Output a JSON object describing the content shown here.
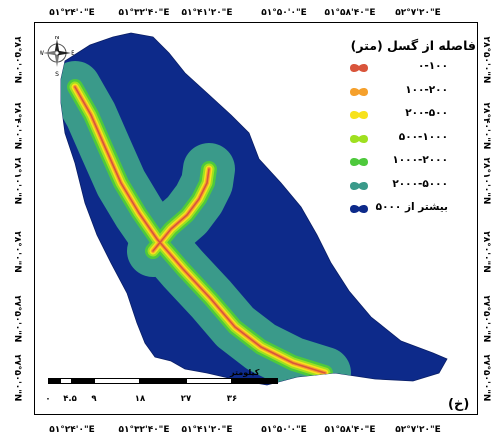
{
  "axes": {
    "top_labels": [
      "۵۱°۲۴'۰\"E",
      "۵۱°۳۲'۴۰\"E",
      "۵۱°۴۱'۲۰\"E",
      "۵۱°۵۰'۰\"E",
      "۵۱°۵۸'۴۰\"E",
      "۵۲°۷'۲۰\"E"
    ],
    "bottom_labels": [
      "۵۱°۲۴'۰\"E",
      "۵۱°۳۲'۴۰\"E",
      "۵۱°۴۱'۲۰\"E",
      "۵۱°۵۰'۰\"E",
      "۵۱°۵۸'۴۰\"E",
      "۵۲°۷'۲۰\"E"
    ],
    "left_labels": [
      "۲۸°۵۰'۰\"N",
      "۲۸°۴۰'۰\"N",
      "۲۸°۱۰'۰\"N",
      "۲۸°۰'۰\"N",
      "۲۷°۵۰'۰\"N",
      "۲۷°۵۰'۰\"N"
    ],
    "right_labels": [
      "۲۸°۵۰'۰\"N",
      "۲۸°۴۰'۰\"N",
      "۲۸°۱۰'۰\"N",
      "۲۸°۰'۰\"N",
      "۲۷°۵۰'۰\"N",
      "۲۷°۵۰'۰\"N"
    ]
  },
  "legend": {
    "title": "فاصله از گسل (متر)",
    "items": [
      {
        "label": "۰-۱۰۰",
        "color": "#d9553b"
      },
      {
        "label": "۱۰۰-۲۰۰",
        "color": "#f5a02c"
      },
      {
        "label": "۲۰۰-۵۰۰",
        "color": "#f7e21c"
      },
      {
        "label": "۵۰۰-۱۰۰۰",
        "color": "#9fe020"
      },
      {
        "label": "۱۰۰۰-۲۰۰۰",
        "color": "#4ec93c"
      },
      {
        "label": "۲۰۰۰-۵۰۰۰",
        "color": "#3a9a8a"
      },
      {
        "label": "بیشتر از ۵۰۰۰",
        "color": "#0d2a8a"
      }
    ]
  },
  "scale": {
    "unit": "کیلومتر",
    "numbers": [
      "۰",
      "۴.۵",
      "۹",
      "۱۸",
      "۲۷",
      "۳۶"
    ]
  },
  "panel_label": "(خ)",
  "north_letters": {
    "n": "N",
    "s": "S",
    "e": "E",
    "w": "W"
  },
  "colors": {
    "background_region": "#0d2a8a",
    "buffer_outer": "#3a9a8a",
    "buffer_1000": "#4ec93c",
    "buffer_500": "#9fe020",
    "buffer_200": "#f7e21c",
    "buffer_100": "#f5a02c",
    "fault": "#d9553b"
  }
}
